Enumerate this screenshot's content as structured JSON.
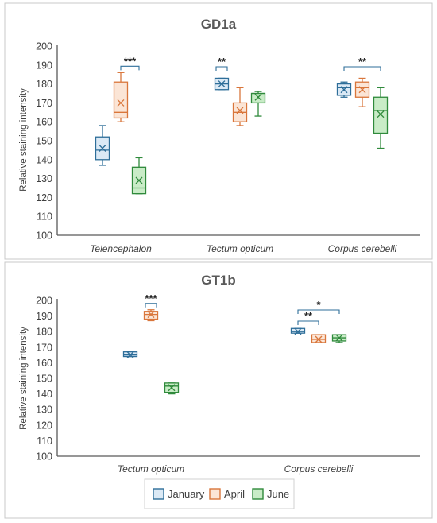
{
  "colors": {
    "January": {
      "fill": "#dbe9f5",
      "stroke": "#2e6e99"
    },
    "April": {
      "fill": "#fbe5d6",
      "stroke": "#d9763b"
    },
    "June": {
      "fill": "#c9ecc7",
      "stroke": "#2f8a3b"
    }
  },
  "legend": [
    "January",
    "April",
    "June"
  ],
  "chart_data": [
    {
      "type": "box",
      "title": "GD1a",
      "ylabel": "Relative staining intensity",
      "ylim": [
        100,
        200
      ],
      "yticks": [
        "100",
        "110",
        "120",
        "130",
        "140",
        "150",
        "160",
        "170",
        "180",
        "190",
        "200"
      ],
      "categories": [
        "Telencephalon",
        "Tectum opticum",
        "Corpus cerebelli"
      ],
      "series": [
        {
          "name": "January",
          "boxes": [
            {
              "min": 137,
              "q1": 140,
              "median": 145,
              "q3": 152,
              "max": 158,
              "mean": 146
            },
            {
              "min": 177,
              "q1": 177,
              "median": 180,
              "q3": 183,
              "max": 183,
              "mean": 180
            },
            {
              "min": 173,
              "q1": 174,
              "median": 178,
              "q3": 180,
              "max": 181,
              "mean": 177
            }
          ]
        },
        {
          "name": "April",
          "boxes": [
            {
              "min": 160,
              "q1": 162,
              "median": 165,
              "q3": 181,
              "max": 186,
              "mean": 170
            },
            {
              "min": 158,
              "q1": 160,
              "median": 165,
              "q3": 170,
              "max": 178,
              "mean": 166
            },
            {
              "min": 168,
              "q1": 173,
              "median": 178,
              "q3": 181,
              "max": 183,
              "mean": 177
            }
          ]
        },
        {
          "name": "June",
          "boxes": [
            {
              "min": 122,
              "q1": 122,
              "median": 125,
              "q3": 136,
              "max": 141,
              "mean": 129
            },
            {
              "min": 163,
              "q1": 170,
              "median": 175,
              "q3": 175,
              "max": 176,
              "mean": 173
            },
            {
              "min": 146,
              "q1": 154,
              "median": 166,
              "q3": 173,
              "max": 178,
              "mean": 164
            }
          ]
        }
      ],
      "significance": [
        {
          "category": 0,
          "from": "April",
          "to": "June",
          "label": "***"
        },
        {
          "category": 1,
          "from": "January",
          "to": "January",
          "label": "**"
        },
        {
          "category": 2,
          "from": "January",
          "to": "June",
          "label": "**"
        }
      ]
    },
    {
      "type": "box",
      "title": "GT1b",
      "ylabel": "Relative staining intensity",
      "ylim": [
        100,
        200
      ],
      "yticks": [
        "100",
        "110",
        "120",
        "130",
        "140",
        "150",
        "160",
        "170",
        "180",
        "190",
        "200"
      ],
      "categories": [
        "Tectum opticum",
        "Corpus cerebelli"
      ],
      "series": [
        {
          "name": "January",
          "boxes": [
            {
              "min": 164,
              "q1": 164,
              "median": 165,
              "q3": 167,
              "max": 167,
              "mean": 165
            },
            {
              "min": 179,
              "q1": 179,
              "median": 180,
              "q3": 182,
              "max": 182,
              "mean": 180
            }
          ]
        },
        {
          "name": "April",
          "boxes": [
            {
              "min": 187,
              "q1": 188,
              "median": 191,
              "q3": 193,
              "max": 194,
              "mean": 191
            },
            {
              "min": 173,
              "q1": 173,
              "median": 175,
              "q3": 178,
              "max": 178,
              "mean": 175
            }
          ]
        },
        {
          "name": "June",
          "boxes": [
            {
              "min": 140,
              "q1": 141,
              "median": 145,
              "q3": 147,
              "max": 147,
              "mean": 144
            },
            {
              "min": 173,
              "q1": 174,
              "median": 176,
              "q3": 178,
              "max": 178,
              "mean": 176
            }
          ]
        }
      ],
      "significance": [
        {
          "category": 0,
          "from": "April",
          "to": "April",
          "label": "***"
        },
        {
          "category": 1,
          "from": "January",
          "to": "April",
          "label": "**"
        },
        {
          "category": 1,
          "from": "January",
          "to": "June",
          "label": "*"
        }
      ]
    }
  ]
}
